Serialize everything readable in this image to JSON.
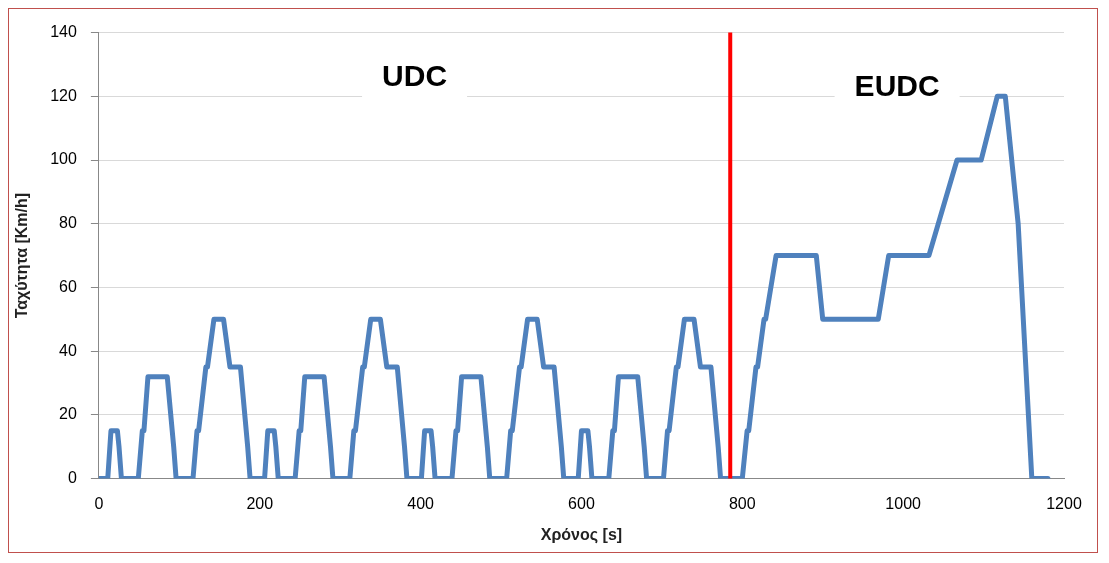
{
  "chart_data": {
    "type": "line",
    "xlabel": "Χρόνος [s]",
    "ylabel": "Ταχύτητα [Km/h]",
    "x": [
      0,
      11,
      15,
      23,
      25,
      28,
      49,
      54,
      56,
      61,
      85,
      93,
      96,
      117,
      122,
      124,
      133,
      135,
      143,
      155,
      163,
      176,
      185,
      188,
      195,
      206,
      210,
      218,
      220,
      223,
      244,
      249,
      251,
      256,
      280,
      288,
      291,
      312,
      317,
      319,
      328,
      330,
      338,
      350,
      358,
      371,
      380,
      383,
      390,
      401,
      405,
      413,
      415,
      418,
      439,
      444,
      446,
      451,
      475,
      483,
      486,
      507,
      512,
      514,
      523,
      525,
      533,
      545,
      553,
      566,
      575,
      578,
      585,
      596,
      600,
      608,
      610,
      613,
      634,
      639,
      641,
      646,
      670,
      678,
      681,
      702,
      707,
      709,
      718,
      720,
      728,
      740,
      748,
      761,
      770,
      773,
      780,
      800,
      806,
      808,
      817,
      819,
      827,
      829,
      842,
      892,
      900,
      969,
      982,
      1032,
      1067,
      1097,
      1117,
      1127,
      1143,
      1160,
      1180
    ],
    "series": [
      {
        "color": "#4f81bd",
        "values": [
          0,
          0,
          15,
          15,
          10,
          0,
          0,
          15,
          15,
          32,
          32,
          10,
          0,
          0,
          15,
          15,
          35,
          35,
          50,
          50,
          35,
          35,
          10,
          0,
          0,
          0,
          15,
          15,
          10,
          0,
          0,
          15,
          15,
          32,
          32,
          10,
          0,
          0,
          15,
          15,
          35,
          35,
          50,
          50,
          35,
          35,
          10,
          0,
          0,
          0,
          15,
          15,
          10,
          0,
          0,
          15,
          15,
          32,
          32,
          10,
          0,
          0,
          15,
          15,
          35,
          35,
          50,
          50,
          35,
          35,
          10,
          0,
          0,
          0,
          15,
          15,
          10,
          0,
          0,
          15,
          15,
          32,
          32,
          10,
          0,
          0,
          15,
          15,
          35,
          35,
          50,
          50,
          35,
          35,
          10,
          0,
          0,
          0,
          15,
          15,
          35,
          35,
          50,
          50,
          70,
          70,
          50,
          50,
          70,
          70,
          100,
          100,
          120,
          120,
          80,
          0,
          0
        ]
      }
    ],
    "xlim": [
      0,
      1200
    ],
    "xticks": [
      0,
      200,
      400,
      600,
      800,
      1000,
      1200
    ],
    "ylim": [
      0,
      140
    ],
    "yticks": [
      0,
      20,
      40,
      60,
      80,
      100,
      120,
      140
    ],
    "grid": "y",
    "legend": false,
    "marker": "none",
    "line_style": "solid",
    "ref_lines": [
      {
        "axis": "x",
        "value": 785,
        "color": "#ff0000"
      }
    ],
    "annotations": [
      "UDC",
      "EUDC"
    ]
  }
}
